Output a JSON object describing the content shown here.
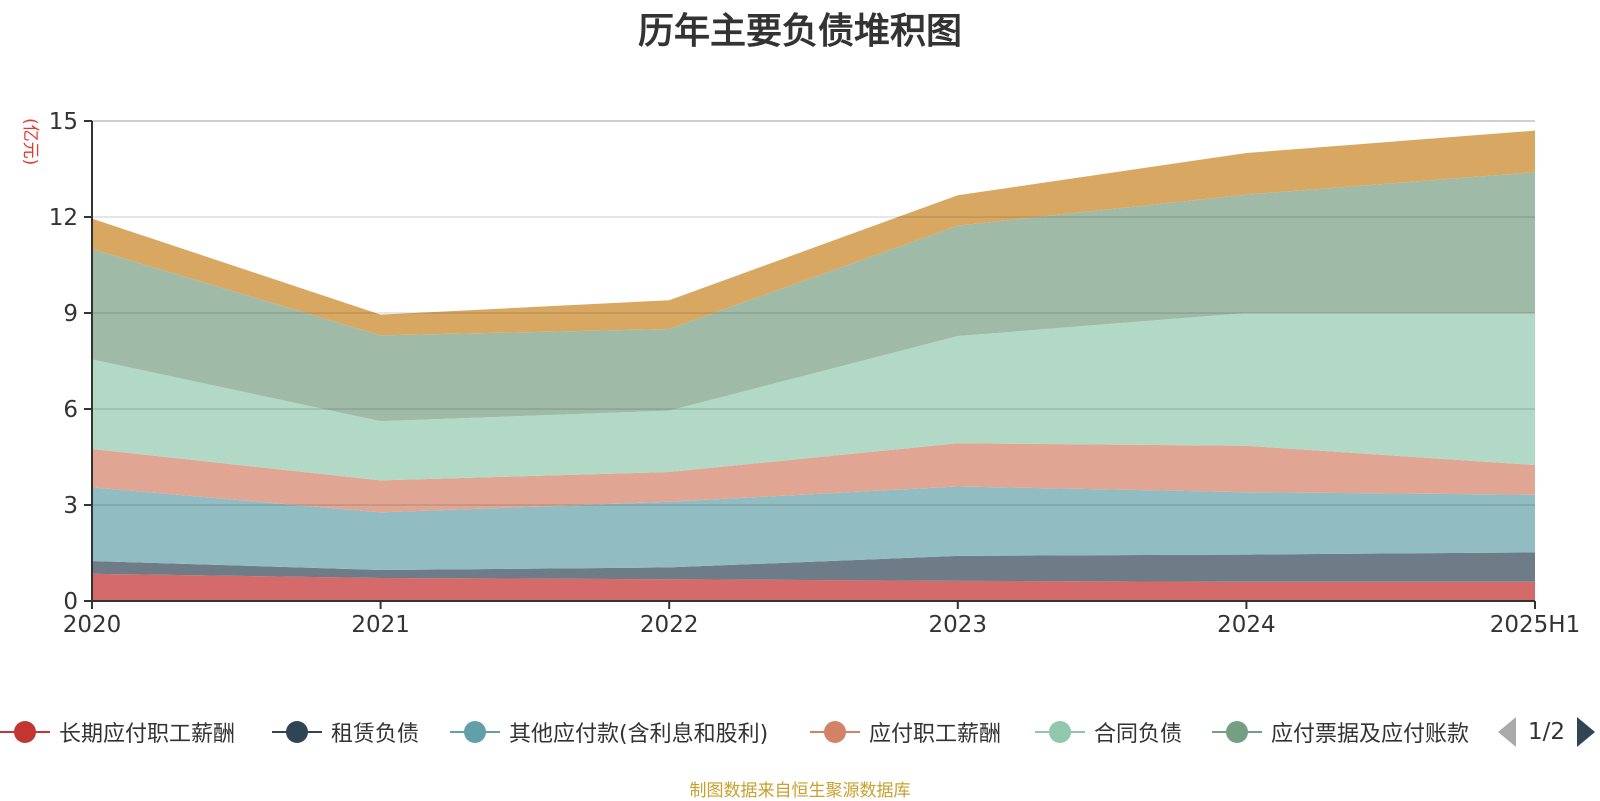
{
  "title": "历年主要负债堆积图",
  "unit": "(亿元)",
  "footer": "制图数据来自恒生聚源数据库",
  "pager": {
    "text": "1/2"
  },
  "chart_data": {
    "type": "area",
    "stacked": true,
    "x": [
      "2020",
      "2021",
      "2022",
      "2023",
      "2024",
      "2025H1"
    ],
    "ylim": [
      0,
      15
    ],
    "yticks": [
      0,
      3,
      6,
      9,
      12,
      15
    ],
    "grid": true,
    "legend_position": "bottom",
    "series": [
      {
        "name": "长期应付职工薪酬",
        "color": "#c23531",
        "fill": "#d46a6a",
        "values": [
          0.85,
          0.72,
          0.68,
          0.63,
          0.6,
          0.6
        ]
      },
      {
        "name": "租赁负债",
        "color": "#2f4554",
        "fill": "#6e7c87",
        "values": [
          0.4,
          0.25,
          0.37,
          0.78,
          0.85,
          0.92
        ]
      },
      {
        "name": "其他应付款(含利息和股利)",
        "color": "#61a0a8",
        "fill": "#90bcc2",
        "values": [
          2.3,
          1.8,
          2.05,
          2.17,
          1.95,
          1.8
        ]
      },
      {
        "name": "应付职工薪酬",
        "color": "#d48265",
        "fill": "#e1a693",
        "values": [
          1.2,
          1.0,
          0.93,
          1.35,
          1.45,
          0.93
        ]
      },
      {
        "name": "合同负债",
        "color": "#91c7ae",
        "fill": "#b2d8c6",
        "values": [
          2.8,
          1.85,
          1.92,
          3.35,
          4.15,
          4.75
        ]
      },
      {
        "name": "应付票据及应付账款",
        "color": "#749f83",
        "fill": "#9fbaa6",
        "values": [
          3.45,
          2.68,
          2.55,
          3.45,
          3.7,
          4.4
        ]
      },
      {
        "name": "",
        "color": "#ca8622",
        "fill": "#d8a862",
        "values": [
          0.95,
          0.65,
          0.9,
          0.95,
          1.3,
          1.3
        ]
      }
    ],
    "legend_visible": [
      {
        "label": "长期应付职工薪酬",
        "color": "#c23531"
      },
      {
        "label": "租赁负债",
        "color": "#2f4554"
      },
      {
        "label": "其他应付款(含利息和股利)",
        "color": "#61a0a8"
      },
      {
        "label": "应付职工薪酬",
        "color": "#d48265"
      },
      {
        "label": "合同负债",
        "color": "#91c7ae"
      },
      {
        "label": "应付票据及应付账款",
        "color": "#749f83"
      }
    ]
  }
}
